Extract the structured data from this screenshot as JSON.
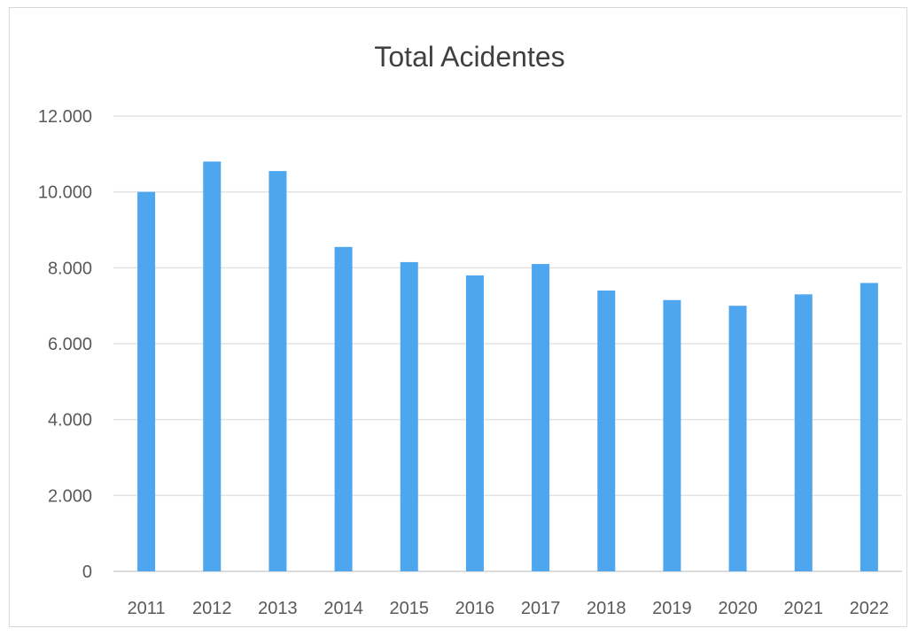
{
  "chart_data": {
    "type": "bar",
    "title": "Total Acidentes",
    "xlabel": "",
    "ylabel": "",
    "categories": [
      "2011",
      "2012",
      "2013",
      "2014",
      "2015",
      "2016",
      "2017",
      "2018",
      "2019",
      "2020",
      "2021",
      "2022"
    ],
    "values": [
      10000,
      10800,
      10550,
      8550,
      8150,
      7800,
      8100,
      7400,
      7150,
      7000,
      7300,
      7600
    ],
    "ylim": [
      0,
      12000
    ],
    "yticks": [
      0,
      2000,
      4000,
      6000,
      8000,
      10000,
      12000
    ],
    "ytick_labels": [
      "0",
      "2.000",
      "4.000",
      "6.000",
      "8.000",
      "10.000",
      "12.000"
    ],
    "grid": true,
    "legend": "none",
    "bar_color": "#4ea6ee"
  }
}
